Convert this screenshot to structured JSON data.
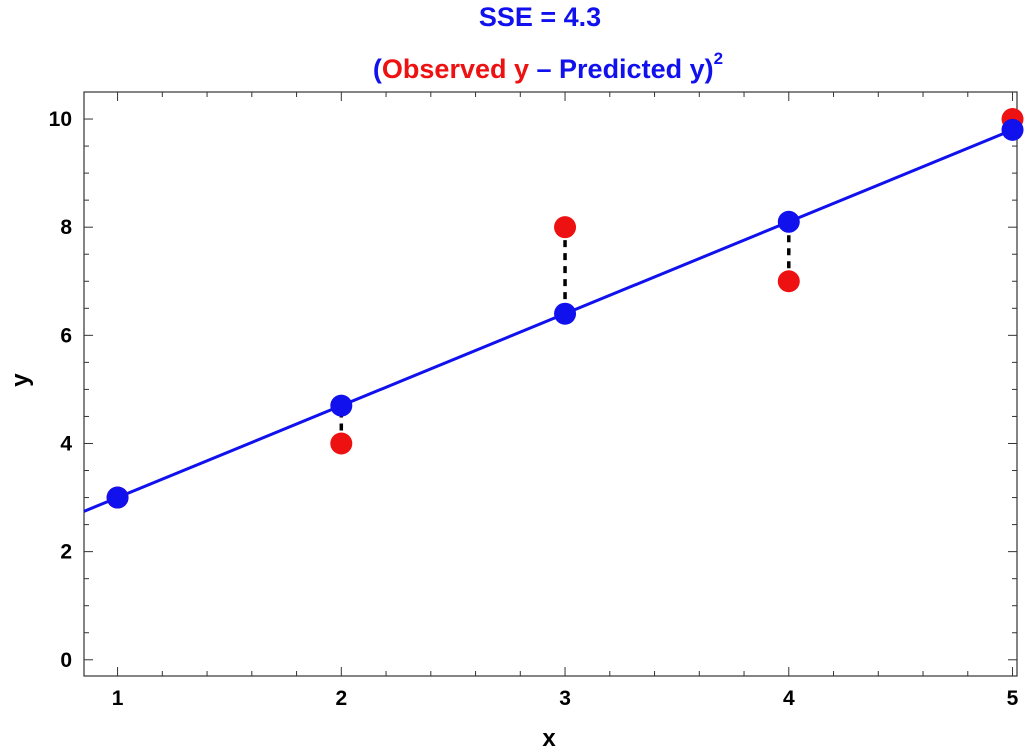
{
  "chart_data": {
    "type": "scatter",
    "title": "SSE = 4.3",
    "subtitle": {
      "open": "(",
      "observed": "Observed y",
      "minus": " – ",
      "predicted": "Predicted y)",
      "exponent": "2"
    },
    "xlabel": "x",
    "ylabel": "y",
    "xlim": [
      0.85,
      5.02
    ],
    "ylim": [
      -0.3,
      10.5
    ],
    "xticks": [
      1,
      2,
      3,
      4,
      5
    ],
    "yticks": [
      0,
      2,
      4,
      6,
      8,
      10
    ],
    "grid": false,
    "series": [
      {
        "name": "Observed y",
        "color": "#ee1111",
        "x": [
          1,
          2,
          3,
          4,
          5
        ],
        "y": [
          3,
          4,
          8,
          7,
          10
        ]
      },
      {
        "name": "Predicted y",
        "color": "#1111ee",
        "x": [
          1,
          2,
          3,
          4,
          5
        ],
        "y": [
          3.0,
          4.7,
          6.4,
          8.1,
          9.8
        ]
      }
    ],
    "fit_line": {
      "slope": 1.7,
      "intercept": 1.3,
      "color": "#1111ee"
    },
    "residual_lines": {
      "style": "dashed",
      "color": "#000000"
    },
    "colors": {
      "title": "#1111ee",
      "observed": "#ee1111",
      "predicted": "#1111ee"
    }
  }
}
